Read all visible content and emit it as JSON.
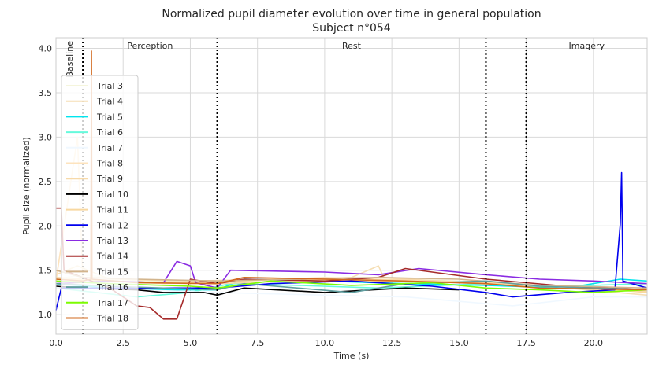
{
  "chart_data": {
    "type": "line",
    "title": "Normalized pupil diameter evolution over time in general population",
    "subtitle": "Subject n°054",
    "xlabel": "Time (s)",
    "ylabel": "Pupil size (normalized)",
    "xlim": [
      0,
      22
    ],
    "ylim": [
      0.78,
      4.12
    ],
    "x_ticks": [
      0,
      2.5,
      5,
      7.5,
      10,
      12.5,
      15,
      17.5,
      20
    ],
    "x_tick_labels": [
      "0.0",
      "2.5",
      "5.0",
      "7.5",
      "10.0",
      "12.5",
      "15.0",
      "17.5",
      "20.0"
    ],
    "y_ticks": [
      1.0,
      1.5,
      2.0,
      2.5,
      3.0,
      3.5,
      4.0
    ],
    "y_tick_labels": [
      "1.0",
      "1.5",
      "2.0",
      "2.5",
      "3.0",
      "3.5",
      "4.0"
    ],
    "grid": true,
    "legend_position": "left",
    "phase_boundaries": [
      1,
      6,
      16,
      17.5
    ],
    "phases": [
      {
        "label": "Baseline",
        "x": 0.5,
        "rotated": true
      },
      {
        "label": "Perception",
        "x": 3.5
      },
      {
        "label": "Rest",
        "x": 11
      },
      {
        "label": "Imagery",
        "x": 19.75
      }
    ],
    "series": [
      {
        "name": "Trial 3",
        "color": "#f5f5dc",
        "points": [
          [
            0,
            1.4
          ],
          [
            1,
            1.45
          ],
          [
            3,
            1.38
          ],
          [
            6,
            1.36
          ],
          [
            9,
            1.4
          ],
          [
            12,
            1.42
          ],
          [
            15,
            1.38
          ],
          [
            18,
            1.33
          ],
          [
            22,
            1.28
          ]
        ]
      },
      {
        "name": "Trial 4",
        "color": "#f5deb3",
        "points": [
          [
            0,
            1.45
          ],
          [
            0.8,
            1.55
          ],
          [
            2,
            1.4
          ],
          [
            5,
            1.38
          ],
          [
            8,
            1.4
          ],
          [
            11,
            1.42
          ],
          [
            12,
            1.55
          ],
          [
            12.2,
            1.42
          ],
          [
            15,
            1.36
          ],
          [
            19,
            1.3
          ],
          [
            22,
            1.22
          ]
        ]
      },
      {
        "name": "Trial 5",
        "color": "#00e5ee",
        "points": [
          [
            0,
            1.35
          ],
          [
            2,
            1.3
          ],
          [
            4,
            1.28
          ],
          [
            6,
            1.28
          ],
          [
            7,
            1.4
          ],
          [
            10,
            1.38
          ],
          [
            13,
            1.35
          ],
          [
            16,
            1.33
          ],
          [
            19,
            1.3
          ],
          [
            21,
            1.4
          ],
          [
            22,
            1.38
          ]
        ]
      },
      {
        "name": "Trial 6",
        "color": "#66fadc",
        "points": [
          [
            0,
            1.3
          ],
          [
            1.5,
            1.25
          ],
          [
            3,
            1.2
          ],
          [
            5,
            1.25
          ],
          [
            6.5,
            1.35
          ],
          [
            9,
            1.33
          ],
          [
            12,
            1.3
          ],
          [
            16,
            1.35
          ],
          [
            19,
            1.32
          ],
          [
            22,
            1.35
          ]
        ]
      },
      {
        "name": "Trial 7",
        "color": "#f0f8ff",
        "points": [
          [
            0,
            1.3
          ],
          [
            3,
            1.28
          ],
          [
            6,
            1.25
          ],
          [
            10,
            1.22
          ],
          [
            13,
            1.2
          ],
          [
            15,
            1.15
          ],
          [
            17,
            1.1
          ],
          [
            20,
            1.2
          ],
          [
            22,
            1.2
          ]
        ]
      },
      {
        "name": "Trial 8",
        "color": "#fde3bd",
        "points": [
          [
            0,
            1.38
          ],
          [
            0.8,
            3.0
          ],
          [
            1,
            1.4
          ],
          [
            4,
            1.35
          ],
          [
            7,
            1.38
          ],
          [
            10,
            1.42
          ],
          [
            14,
            1.38
          ],
          [
            18,
            1.32
          ],
          [
            22,
            1.28
          ]
        ]
      },
      {
        "name": "Trial 9",
        "color": "#f7d9a8",
        "points": [
          [
            0,
            1.42
          ],
          [
            1,
            1.4
          ],
          [
            3,
            1.36
          ],
          [
            6,
            1.35
          ],
          [
            9,
            1.38
          ],
          [
            13,
            1.4
          ],
          [
            17,
            1.34
          ],
          [
            22,
            1.26
          ]
        ]
      },
      {
        "name": "Trial 10",
        "color": "#000000",
        "points": [
          [
            0,
            1.32
          ],
          [
            1,
            1.3
          ],
          [
            3,
            1.28
          ],
          [
            4,
            1.25
          ],
          [
            5.5,
            1.25
          ],
          [
            6,
            1.22
          ],
          [
            7,
            1.3
          ],
          [
            10,
            1.25
          ],
          [
            13,
            1.3
          ],
          [
            15,
            1.28
          ]
        ]
      },
      {
        "name": "Trial 11",
        "color": "#f8d8a0",
        "points": [
          [
            0,
            1.4
          ],
          [
            2,
            1.38
          ],
          [
            5,
            1.35
          ],
          [
            8,
            1.4
          ],
          [
            12,
            1.38
          ],
          [
            16,
            1.36
          ],
          [
            20,
            1.3
          ],
          [
            22,
            1.25
          ]
        ]
      },
      {
        "name": "Trial 12",
        "color": "#0000ee",
        "points": [
          [
            0,
            1.05
          ],
          [
            0.2,
            1.3
          ],
          [
            2,
            1.3
          ],
          [
            6,
            1.3
          ],
          [
            8,
            1.35
          ],
          [
            11,
            1.38
          ],
          [
            14,
            1.32
          ],
          [
            16,
            1.25
          ],
          [
            17,
            1.2
          ],
          [
            19,
            1.25
          ],
          [
            20.8,
            1.28
          ],
          [
            21,
            2.02
          ],
          [
            21.05,
            2.6
          ],
          [
            21.1,
            1.38
          ],
          [
            22,
            1.3
          ]
        ]
      },
      {
        "name": "Trial 13",
        "color": "#8a2be2",
        "points": [
          [
            0,
            1.35
          ],
          [
            2,
            1.38
          ],
          [
            4,
            1.36
          ],
          [
            4.5,
            1.6
          ],
          [
            5,
            1.55
          ],
          [
            5.2,
            1.36
          ],
          [
            6,
            1.3
          ],
          [
            6.5,
            1.5
          ],
          [
            10,
            1.48
          ],
          [
            12,
            1.45
          ],
          [
            13.5,
            1.52
          ],
          [
            16,
            1.45
          ],
          [
            18,
            1.4
          ],
          [
            20,
            1.38
          ],
          [
            22,
            1.35
          ]
        ]
      },
      {
        "name": "Trial 14",
        "color": "#a52a2a",
        "points": [
          [
            0,
            2.2
          ],
          [
            0.2,
            2.2
          ],
          [
            0.3,
            1.5
          ],
          [
            2,
            1.3
          ],
          [
            3,
            1.1
          ],
          [
            3.5,
            1.08
          ],
          [
            4,
            0.95
          ],
          [
            4.5,
            0.95
          ],
          [
            5,
            1.4
          ],
          [
            6,
            1.35
          ],
          [
            7,
            1.4
          ],
          [
            10,
            1.38
          ],
          [
            12,
            1.42
          ],
          [
            13,
            1.52
          ],
          [
            16,
            1.4
          ],
          [
            19,
            1.32
          ],
          [
            22,
            1.28
          ]
        ]
      },
      {
        "name": "Trial 15",
        "color": "#d2b48c",
        "points": [
          [
            0,
            1.5
          ],
          [
            1,
            1.42
          ],
          [
            3,
            1.4
          ],
          [
            6,
            1.38
          ],
          [
            9,
            1.4
          ],
          [
            12,
            1.42
          ],
          [
            15,
            1.4
          ],
          [
            18,
            1.33
          ],
          [
            22,
            1.3
          ]
        ]
      },
      {
        "name": "Trial 16",
        "color": "#5f9ea0",
        "points": [
          [
            0,
            1.35
          ],
          [
            2,
            1.32
          ],
          [
            4,
            1.3
          ],
          [
            6,
            1.28
          ],
          [
            7,
            1.35
          ],
          [
            9,
            1.3
          ],
          [
            11,
            1.25
          ],
          [
            13,
            1.35
          ],
          [
            16,
            1.38
          ],
          [
            18,
            1.32
          ],
          [
            20,
            1.3
          ],
          [
            22,
            1.28
          ]
        ]
      },
      {
        "name": "Trial 17",
        "color": "#7cfc00",
        "points": [
          [
            0,
            1.38
          ],
          [
            2,
            1.35
          ],
          [
            5,
            1.32
          ],
          [
            6,
            1.3
          ],
          [
            8,
            1.38
          ],
          [
            11,
            1.33
          ],
          [
            14,
            1.36
          ],
          [
            16,
            1.3
          ],
          [
            18,
            1.28
          ],
          [
            20,
            1.25
          ],
          [
            22,
            1.28
          ]
        ]
      },
      {
        "name": "Trial 18",
        "color": "#d2691e",
        "points": [
          [
            0,
            1.4
          ],
          [
            1,
            1.38
          ],
          [
            1.3,
            1.4
          ],
          [
            1.32,
            3.97
          ],
          [
            1.34,
            1.4
          ],
          [
            3,
            1.36
          ],
          [
            6,
            1.35
          ],
          [
            7,
            1.42
          ],
          [
            10,
            1.4
          ],
          [
            13,
            1.38
          ],
          [
            16,
            1.35
          ],
          [
            18,
            1.3
          ],
          [
            22,
            1.28
          ]
        ]
      }
    ]
  }
}
